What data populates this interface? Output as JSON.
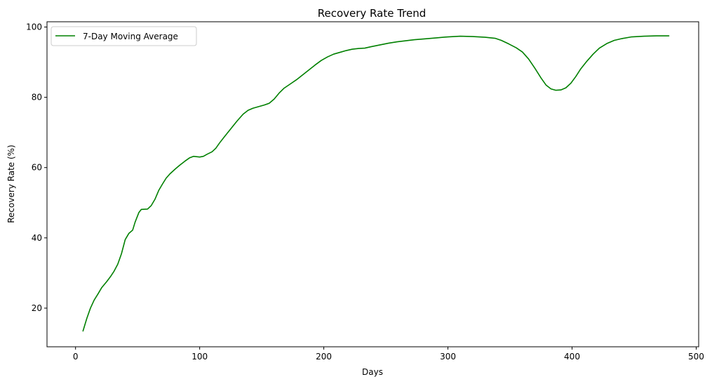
{
  "chart_data": {
    "type": "line",
    "title": "Recovery Rate Trend",
    "xlabel": "Days",
    "ylabel": "Recovery Rate (%)",
    "xlim": [
      -23,
      502
    ],
    "ylim": [
      9,
      101.5
    ],
    "xticks": [
      0,
      100,
      200,
      300,
      400,
      500
    ],
    "yticks": [
      20,
      40,
      60,
      80,
      100
    ],
    "grid": false,
    "legend_position": "top-left",
    "series": [
      {
        "name": "7-Day Moving Average",
        "color": "#008000",
        "points": [
          [
            6,
            13.5
          ],
          [
            9,
            17
          ],
          [
            12,
            20
          ],
          [
            15,
            22.3
          ],
          [
            18,
            24
          ],
          [
            21,
            25.8
          ],
          [
            25,
            27.5
          ],
          [
            28,
            28.9
          ],
          [
            31,
            30.5
          ],
          [
            34,
            32.5
          ],
          [
            37,
            35.5
          ],
          [
            40,
            39.5
          ],
          [
            43,
            41.3
          ],
          [
            46,
            42.2
          ],
          [
            48,
            44.5
          ],
          [
            51,
            47.2
          ],
          [
            53,
            48.1
          ],
          [
            58,
            48.2
          ],
          [
            61,
            49.2
          ],
          [
            64,
            51
          ],
          [
            67,
            53.5
          ],
          [
            70,
            55.3
          ],
          [
            73,
            57
          ],
          [
            76,
            58.2
          ],
          [
            80,
            59.5
          ],
          [
            84,
            60.7
          ],
          [
            88,
            61.8
          ],
          [
            92,
            62.8
          ],
          [
            95,
            63.2
          ],
          [
            100,
            63
          ],
          [
            103,
            63.2
          ],
          [
            106,
            63.8
          ],
          [
            110,
            64.5
          ],
          [
            113,
            65.5
          ],
          [
            116,
            67
          ],
          [
            120,
            68.8
          ],
          [
            125,
            71
          ],
          [
            130,
            73.2
          ],
          [
            135,
            75.2
          ],
          [
            139,
            76.3
          ],
          [
            143,
            76.9
          ],
          [
            148,
            77.4
          ],
          [
            152,
            77.8
          ],
          [
            156,
            78.3
          ],
          [
            160,
            79.5
          ],
          [
            164,
            81.2
          ],
          [
            168,
            82.6
          ],
          [
            173,
            83.8
          ],
          [
            178,
            85
          ],
          [
            183,
            86.4
          ],
          [
            188,
            87.8
          ],
          [
            193,
            89.2
          ],
          [
            198,
            90.5
          ],
          [
            203,
            91.5
          ],
          [
            208,
            92.3
          ],
          [
            213,
            92.8
          ],
          [
            218,
            93.3
          ],
          [
            223,
            93.7
          ],
          [
            228,
            93.9
          ],
          [
            233,
            94
          ],
          [
            238,
            94.4
          ],
          [
            245,
            94.9
          ],
          [
            252,
            95.4
          ],
          [
            259,
            95.8
          ],
          [
            266,
            96.1
          ],
          [
            273,
            96.4
          ],
          [
            280,
            96.6
          ],
          [
            290,
            96.9
          ],
          [
            300,
            97.2
          ],
          [
            310,
            97.4
          ],
          [
            320,
            97.3
          ],
          [
            330,
            97.1
          ],
          [
            338,
            96.8
          ],
          [
            343,
            96.2
          ],
          [
            349,
            95.2
          ],
          [
            355,
            94.1
          ],
          [
            360,
            92.9
          ],
          [
            365,
            90.9
          ],
          [
            370,
            88.3
          ],
          [
            375,
            85.5
          ],
          [
            379,
            83.5
          ],
          [
            383,
            82.4
          ],
          [
            387,
            82
          ],
          [
            391,
            82.1
          ],
          [
            395,
            82.7
          ],
          [
            399,
            84
          ],
          [
            403,
            85.9
          ],
          [
            407,
            88.1
          ],
          [
            412,
            90.3
          ],
          [
            417,
            92.3
          ],
          [
            422,
            94
          ],
          [
            428,
            95.3
          ],
          [
            434,
            96.2
          ],
          [
            440,
            96.7
          ],
          [
            448,
            97.2
          ],
          [
            458,
            97.4
          ],
          [
            468,
            97.5
          ],
          [
            478,
            97.5
          ]
        ]
      }
    ]
  }
}
